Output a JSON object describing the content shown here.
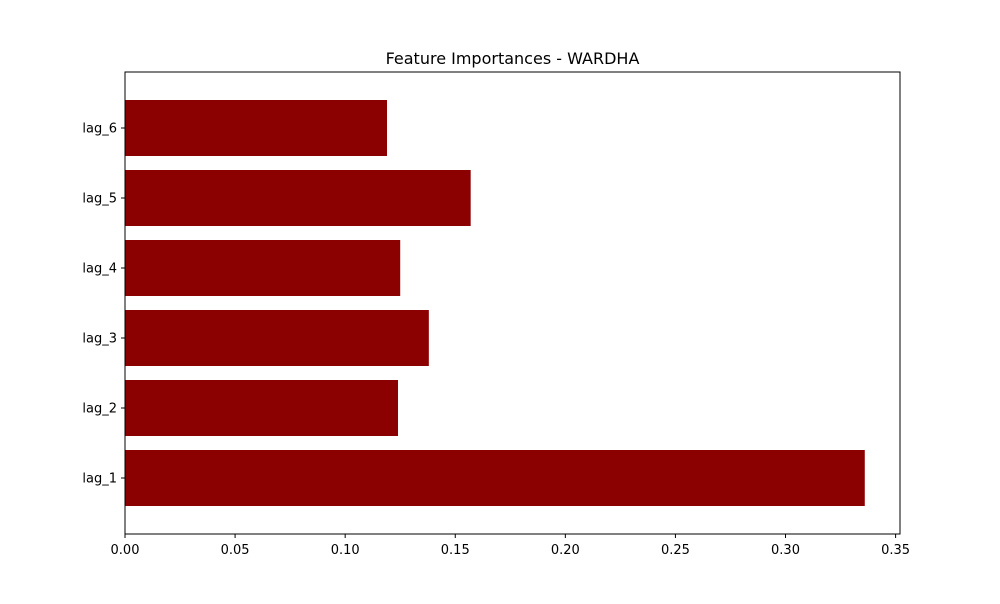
{
  "chart_data": {
    "type": "bar",
    "orientation": "horizontal",
    "title": "Feature Importances - WARDHA",
    "xlabel": "",
    "ylabel": "",
    "categories": [
      "lag_1",
      "lag_2",
      "lag_3",
      "lag_4",
      "lag_5",
      "lag_6"
    ],
    "values": [
      0.336,
      0.124,
      0.138,
      0.125,
      0.157,
      0.119
    ],
    "xlim": [
      0.0,
      0.352
    ],
    "xticks": [
      0.0,
      0.05,
      0.1,
      0.15,
      0.2,
      0.25,
      0.3,
      0.35
    ],
    "xtick_labels": [
      "0.00",
      "0.05",
      "0.10",
      "0.15",
      "0.20",
      "0.25",
      "0.30",
      "0.35"
    ],
    "grid": false,
    "legend": "none",
    "bar_color": "#8b0000"
  }
}
